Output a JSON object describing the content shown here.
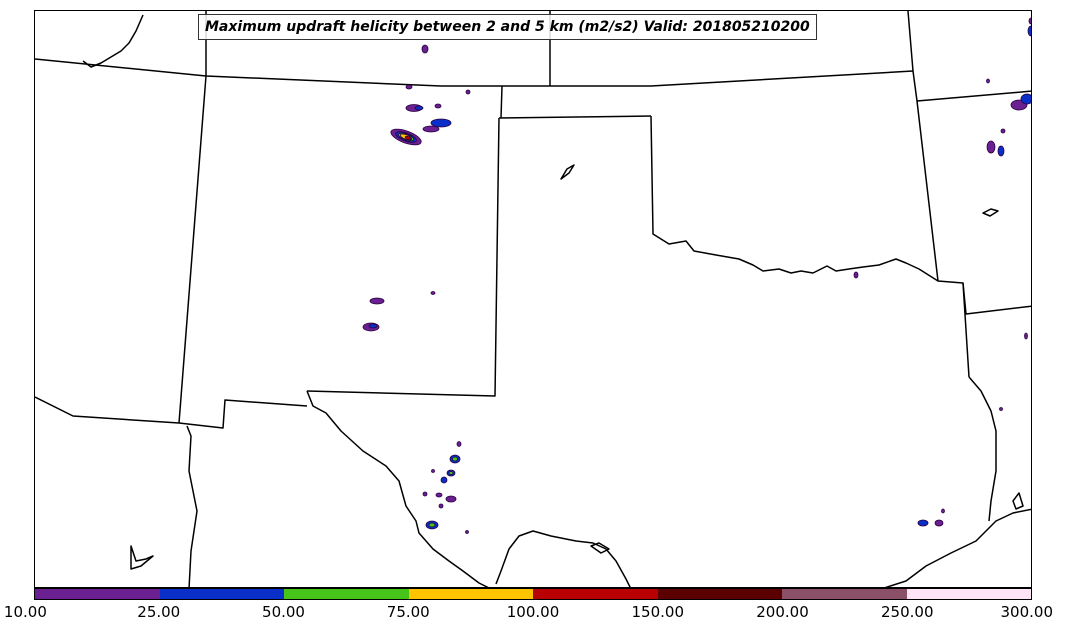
{
  "title": "Maximum updraft helicity between 2 and 5 km (m2/s2) Valid: 201805210200",
  "colorbar": {
    "ticks": [
      "10.00",
      "25.00",
      "50.00",
      "75.00",
      "100.00",
      "150.00",
      "200.00",
      "250.00",
      "300.00"
    ],
    "colors": [
      "#6a2090",
      "#0a2fc8",
      "#46c41a",
      "#ffc400",
      "#b80000",
      "#5a0000",
      "#8a5068",
      "#ffe4f8"
    ]
  }
}
